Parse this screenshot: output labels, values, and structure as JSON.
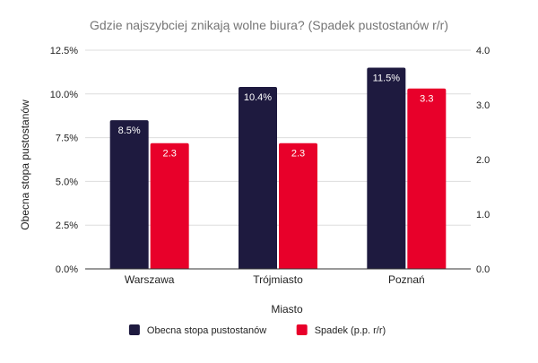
{
  "chart_data": {
    "type": "bar",
    "title": "Gdzie najszybciej znikają wolne biura? (Spadek pustostanów r/r)",
    "xlabel": "Miasto",
    "ylabel": "Obecna stopa pustostanów",
    "ylabel_right": "",
    "categories": [
      "Warszawa",
      "Trójmiasto",
      "Poznań"
    ],
    "series": [
      {
        "name": "Obecna stopa pustostanów",
        "axis": "left",
        "color": "#1e1a3f",
        "values": [
          8.5,
          10.4,
          11.5
        ],
        "data_labels": [
          "8.5%",
          "10.4%",
          "11.5%"
        ]
      },
      {
        "name": "Spadek (p.p. r/r)",
        "axis": "right",
        "color": "#e8002a",
        "values": [
          2.3,
          2.3,
          3.3
        ],
        "data_labels": [
          "2.3",
          "2.3",
          "3.3"
        ]
      }
    ],
    "y_left": {
      "min": 0,
      "max": 12.5,
      "ticks": [
        0,
        2.5,
        5,
        7.5,
        10,
        12.5
      ],
      "tick_labels": [
        "0.0%",
        "2.5%",
        "5.0%",
        "7.5%",
        "10.0%",
        "12.5%"
      ]
    },
    "y_right": {
      "min": 0,
      "max": 4,
      "ticks": [
        0,
        1,
        2,
        3,
        4
      ],
      "tick_labels": [
        "0.0",
        "1.0",
        "2.0",
        "3.0",
        "4.0"
      ]
    },
    "grid": true,
    "legend_position": "bottom",
    "colors": {
      "grid": "#dddddd",
      "axis": "#333333",
      "text": "#222222",
      "title": "#757575",
      "data_label": "#ffffff"
    }
  }
}
